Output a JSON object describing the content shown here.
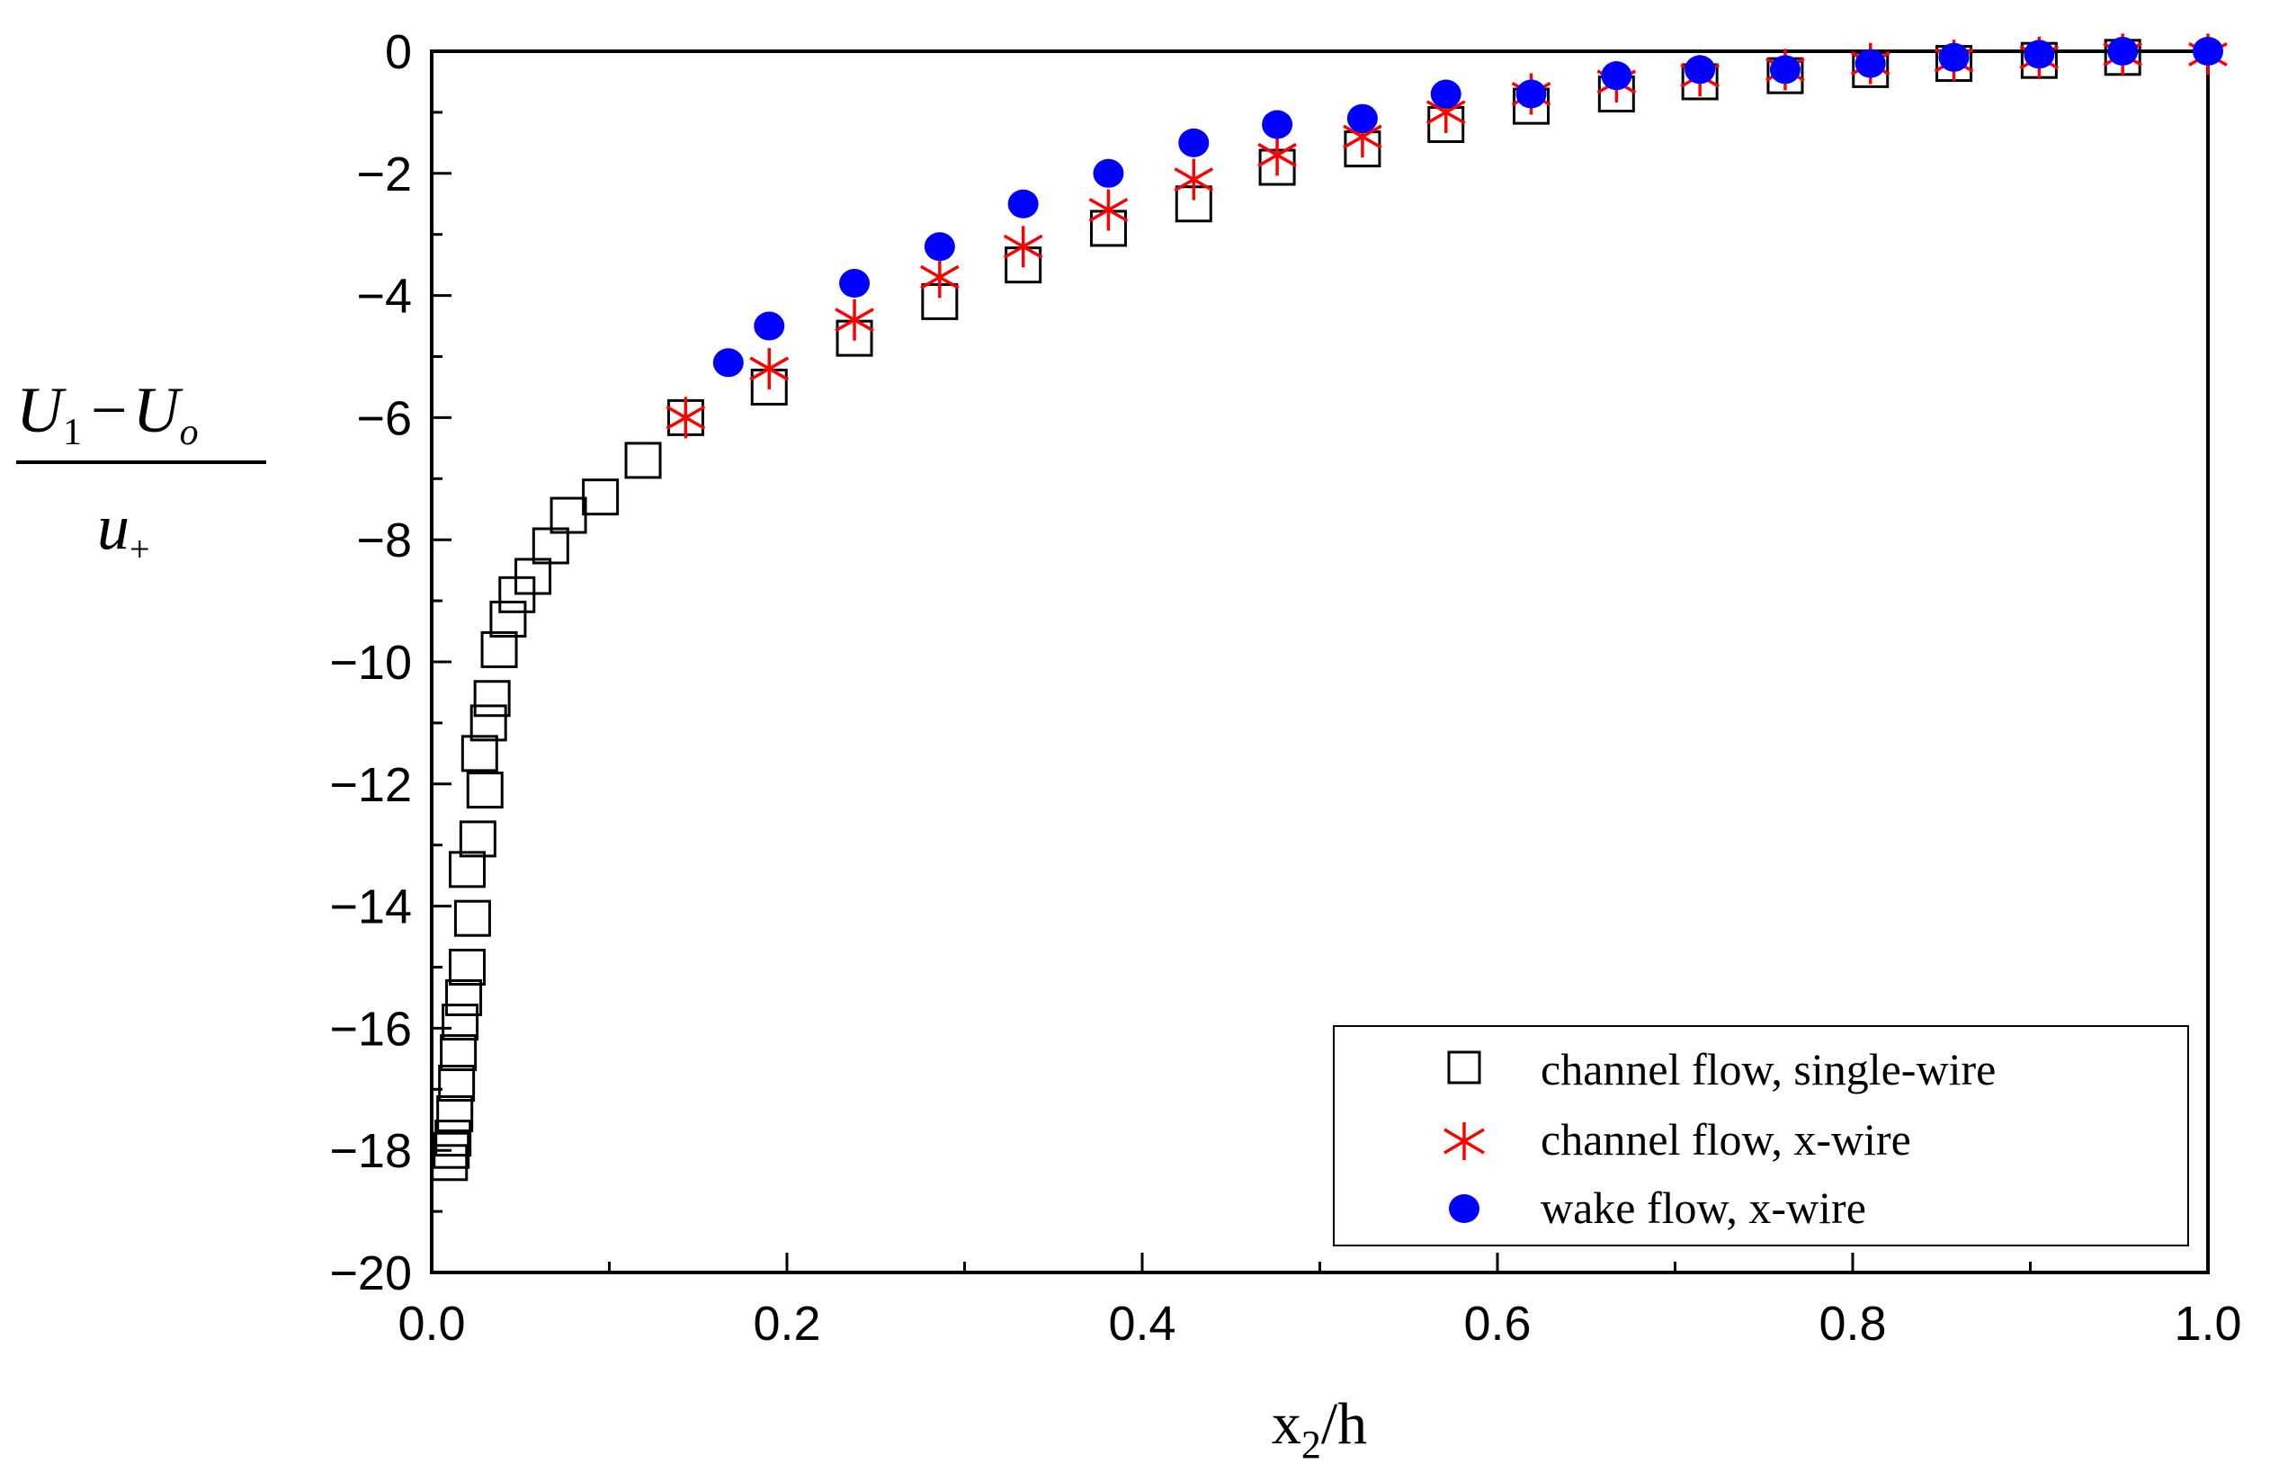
{
  "chart_data": {
    "type": "scatter",
    "xlabel": {
      "main": "x",
      "sub": "2",
      "rest": "/h"
    },
    "ylabel": {
      "numerator_U": "U",
      "numerator_sub1": "1",
      "numerator_minus": "−",
      "numerator_U2": "U",
      "numerator_sub2": "o",
      "denominator_u": "u",
      "denominator_sub": "+"
    },
    "xlim": [
      0.0,
      1.0
    ],
    "ylim": [
      -20,
      0
    ],
    "x_ticks": [
      "0.0",
      "0.2",
      "0.4",
      "0.6",
      "0.8",
      "1.0"
    ],
    "y_ticks": [
      "0",
      "−2",
      "−4",
      "−6",
      "−8",
      "−10",
      "−12",
      "−14",
      "−16",
      "−18",
      "−20"
    ],
    "legend_position": "bottom-right",
    "series": [
      {
        "name": "channel flow, single-wire",
        "marker": "open-square",
        "color": "#000000",
        "points": [
          [
            0.01,
            -18.2
          ],
          [
            0.011,
            -18.0
          ],
          [
            0.012,
            -17.8
          ],
          [
            0.013,
            -17.4
          ],
          [
            0.014,
            -16.9
          ],
          [
            0.015,
            -16.4
          ],
          [
            0.016,
            -15.9
          ],
          [
            0.018,
            -15.5
          ],
          [
            0.02,
            -15.0
          ],
          [
            0.023,
            -14.2
          ],
          [
            0.02,
            -13.4
          ],
          [
            0.026,
            -12.9
          ],
          [
            0.03,
            -12.1
          ],
          [
            0.027,
            -11.5
          ],
          [
            0.032,
            -11.0
          ],
          [
            0.034,
            -10.6
          ],
          [
            0.038,
            -9.8
          ],
          [
            0.043,
            -9.3
          ],
          [
            0.048,
            -8.9
          ],
          [
            0.057,
            -8.6
          ],
          [
            0.067,
            -8.1
          ],
          [
            0.077,
            -7.6
          ],
          [
            0.095,
            -7.3
          ],
          [
            0.119,
            -6.7
          ],
          [
            0.143,
            -6.0
          ],
          [
            0.19,
            -5.5
          ],
          [
            0.238,
            -4.7
          ],
          [
            0.286,
            -4.1
          ],
          [
            0.333,
            -3.5
          ],
          [
            0.381,
            -2.9
          ],
          [
            0.429,
            -2.5
          ],
          [
            0.476,
            -1.9
          ],
          [
            0.524,
            -1.6
          ],
          [
            0.571,
            -1.2
          ],
          [
            0.619,
            -0.9
          ],
          [
            0.667,
            -0.7
          ],
          [
            0.714,
            -0.5
          ],
          [
            0.762,
            -0.4
          ],
          [
            0.81,
            -0.3
          ],
          [
            0.857,
            -0.2
          ],
          [
            0.905,
            -0.15
          ],
          [
            0.952,
            -0.1
          ]
        ]
      },
      {
        "name": "channel flow, x-wire",
        "marker": "asterisk",
        "color": "#ff0000",
        "points": [
          [
            0.143,
            -6.0
          ],
          [
            0.19,
            -5.2
          ],
          [
            0.238,
            -4.4
          ],
          [
            0.286,
            -3.7
          ],
          [
            0.333,
            -3.2
          ],
          [
            0.381,
            -2.6
          ],
          [
            0.429,
            -2.1
          ],
          [
            0.476,
            -1.7
          ],
          [
            0.524,
            -1.4
          ],
          [
            0.571,
            -1.0
          ],
          [
            0.619,
            -0.7
          ],
          [
            0.667,
            -0.5
          ],
          [
            0.714,
            -0.4
          ],
          [
            0.762,
            -0.3
          ],
          [
            0.81,
            -0.2
          ],
          [
            0.857,
            -0.15
          ],
          [
            0.905,
            -0.1
          ],
          [
            0.952,
            -0.05
          ],
          [
            1.0,
            -0.05
          ]
        ]
      },
      {
        "name": "wake flow, x-wire",
        "marker": "filled-circle",
        "color": "#0000ff",
        "points": [
          [
            0.167,
            -5.1
          ],
          [
            0.19,
            -4.5
          ],
          [
            0.238,
            -3.8
          ],
          [
            0.286,
            -3.2
          ],
          [
            0.333,
            -2.5
          ],
          [
            0.381,
            -2.0
          ],
          [
            0.429,
            -1.5
          ],
          [
            0.476,
            -1.2
          ],
          [
            0.524,
            -1.1
          ],
          [
            0.571,
            -0.7
          ],
          [
            0.619,
            -0.7
          ],
          [
            0.667,
            -0.4
          ],
          [
            0.714,
            -0.3
          ],
          [
            0.762,
            -0.3
          ],
          [
            0.81,
            -0.2
          ],
          [
            0.857,
            -0.1
          ],
          [
            0.905,
            -0.05
          ],
          [
            0.952,
            0.0
          ],
          [
            1.0,
            0.0
          ]
        ]
      }
    ]
  }
}
